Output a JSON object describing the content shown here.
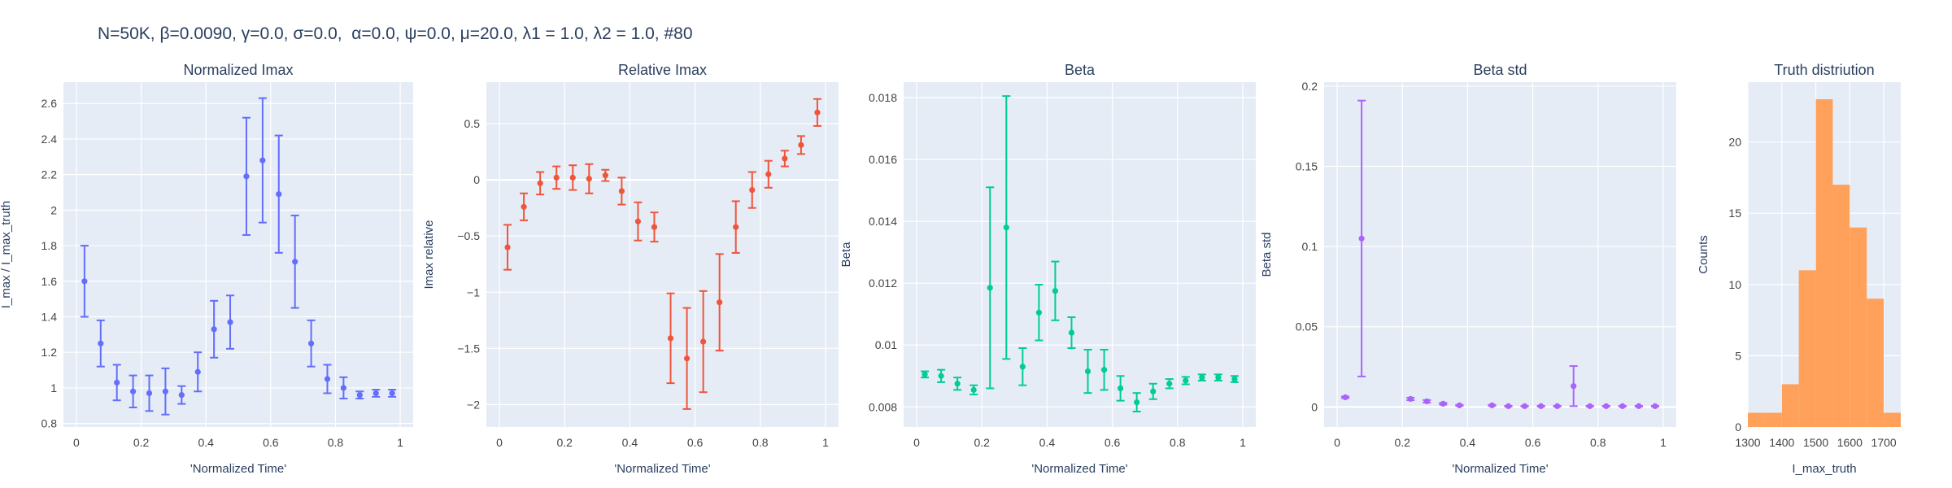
{
  "figure": {
    "suptitle": "N=50K, β=0.0090, γ=0.0, σ=0.0,  α=0.0, ψ=0.0, μ=20.0, λ1 = 1.0, λ2 = 1.0, #80"
  },
  "chart_data": [
    {
      "type": "scatter",
      "title": "Normalized Imax",
      "xlabel": "'Normalized Time'",
      "ylabel": "I_max / I_max_truth",
      "xlim": [
        -0.04,
        1.04
      ],
      "ylim": [
        0.78,
        2.72
      ],
      "xticks": [
        0,
        0.2,
        0.4,
        0.6,
        0.8,
        1
      ],
      "xtick_labels": [
        "0",
        "0.2",
        "0.4",
        "0.6",
        "0.8",
        "1"
      ],
      "yticks": [
        0.8,
        1,
        1.2,
        1.4,
        1.6,
        1.8,
        2,
        2.2,
        2.4,
        2.6
      ],
      "ytick_labels": [
        "0.8",
        "1",
        "1.2",
        "1.4",
        "1.6",
        "1.8",
        "2",
        "2.2",
        "2.4",
        "2.6"
      ],
      "color": "#636efa",
      "grid": true,
      "series": [
        {
          "x": [
            0.025,
            0.075,
            0.125,
            0.175,
            0.225,
            0.275,
            0.325,
            0.375,
            0.425,
            0.475,
            0.525,
            0.575,
            0.625,
            0.675,
            0.725,
            0.775,
            0.825,
            0.875,
            0.925,
            0.975
          ],
          "y": [
            1.6,
            1.25,
            1.03,
            0.98,
            0.97,
            0.98,
            0.96,
            1.09,
            1.33,
            1.37,
            2.19,
            2.28,
            2.09,
            1.71,
            1.25,
            1.05,
            1.0,
            0.96,
            0.97,
            0.97
          ],
          "err": [
            0.2,
            0.13,
            0.1,
            0.09,
            0.1,
            0.13,
            0.05,
            0.11,
            0.16,
            0.15,
            0.33,
            0.35,
            0.33,
            0.26,
            0.13,
            0.08,
            0.06,
            0.02,
            0.02,
            0.02
          ]
        }
      ]
    },
    {
      "type": "scatter",
      "title": "Relative Imax",
      "xlabel": "'Normalized Time'",
      "ylabel": "Imax relative",
      "xlim": [
        -0.04,
        1.04
      ],
      "ylim": [
        -2.2,
        0.87
      ],
      "xticks": [
        0,
        0.2,
        0.4,
        0.6,
        0.8,
        1
      ],
      "xtick_labels": [
        "0",
        "0.2",
        "0.4",
        "0.6",
        "0.8",
        "1"
      ],
      "yticks": [
        -2,
        -1.5,
        -1,
        -0.5,
        0,
        0.5
      ],
      "ytick_labels": [
        "−2",
        "−1.5",
        "−1",
        "−0.5",
        "0",
        "0.5"
      ],
      "color": "#ef553b",
      "grid": true,
      "series": [
        {
          "x": [
            0.025,
            0.075,
            0.125,
            0.175,
            0.225,
            0.275,
            0.325,
            0.375,
            0.425,
            0.475,
            0.525,
            0.575,
            0.625,
            0.675,
            0.725,
            0.775,
            0.825,
            0.875,
            0.925,
            0.975
          ],
          "y": [
            -0.6,
            -0.24,
            -0.03,
            0.02,
            0.02,
            0.01,
            0.04,
            -0.1,
            -0.37,
            -0.42,
            -1.41,
            -1.59,
            -1.44,
            -1.09,
            -0.42,
            -0.09,
            0.05,
            0.19,
            0.31,
            0.6
          ],
          "err": [
            0.2,
            0.12,
            0.1,
            0.1,
            0.11,
            0.13,
            0.05,
            0.12,
            0.17,
            0.13,
            0.4,
            0.45,
            0.45,
            0.43,
            0.23,
            0.16,
            0.12,
            0.07,
            0.08,
            0.12
          ]
        }
      ]
    },
    {
      "type": "scatter",
      "title": "Beta",
      "xlabel": "'Normalized Time'",
      "ylabel": "Beta",
      "xlim": [
        -0.04,
        1.04
      ],
      "ylim": [
        0.00735,
        0.0185
      ],
      "xticks": [
        0,
        0.2,
        0.4,
        0.6,
        0.8,
        1
      ],
      "xtick_labels": [
        "0",
        "0.2",
        "0.4",
        "0.6",
        "0.8",
        "1"
      ],
      "yticks": [
        0.008,
        0.01,
        0.012,
        0.014,
        0.016,
        0.018
      ],
      "ytick_labels": [
        "0.008",
        "0.01",
        "0.012",
        "0.014",
        "0.016",
        "0.018"
      ],
      "color": "#00cc96",
      "grid": true,
      "series": [
        {
          "x": [
            0.025,
            0.075,
            0.125,
            0.175,
            0.225,
            0.275,
            0.325,
            0.375,
            0.425,
            0.475,
            0.525,
            0.575,
            0.625,
            0.675,
            0.725,
            0.775,
            0.825,
            0.875,
            0.925,
            0.975
          ],
          "y": [
            0.00905,
            0.009,
            0.00875,
            0.00855,
            0.01185,
            0.0138,
            0.0093,
            0.01105,
            0.01175,
            0.0104,
            0.00915,
            0.0092,
            0.0086,
            0.00815,
            0.0085,
            0.00875,
            0.00885,
            0.00895,
            0.00895,
            0.0089
          ],
          "err": [
            0.0001,
            0.0002,
            0.0002,
            0.00015,
            0.00325,
            0.00425,
            0.0006,
            0.0009,
            0.00095,
            0.0005,
            0.0007,
            0.00065,
            0.0004,
            0.0003,
            0.00025,
            0.00015,
            0.00012,
            0.0001,
            0.0001,
            0.0001
          ]
        }
      ]
    },
    {
      "type": "scatter",
      "title": "Beta std",
      "xlabel": "'Normalized Time'",
      "ylabel": "Beta std",
      "xlim": [
        -0.04,
        1.04
      ],
      "ylim": [
        -0.0125,
        0.2025
      ],
      "xticks": [
        0,
        0.2,
        0.4,
        0.6,
        0.8,
        1
      ],
      "xtick_labels": [
        "0",
        "0.2",
        "0.4",
        "0.6",
        "0.8",
        "1"
      ],
      "yticks": [
        0,
        0.05,
        0.1,
        0.15,
        0.2
      ],
      "ytick_labels": [
        "0",
        "0.05",
        "0.1",
        "0.15",
        "0.2"
      ],
      "color": "#ab63fa",
      "grid": true,
      "series": [
        {
          "x": [
            0.025,
            0.075,
            0.225,
            0.275,
            0.325,
            0.375,
            0.475,
            0.525,
            0.575,
            0.625,
            0.675,
            0.725,
            0.775,
            0.825,
            0.875,
            0.925,
            0.975
          ],
          "y": [
            0.006,
            0.105,
            0.005,
            0.0035,
            0.002,
            0.001,
            0.001,
            0.0005,
            0.0005,
            0.0005,
            0.0005,
            0.013,
            0.0005,
            0.0005,
            0.0005,
            0.0005,
            0.0005
          ],
          "err": [
            0.0005,
            0.086,
            0.0008,
            0.0008,
            0.0005,
            0.0003,
            0.0003,
            0.0002,
            0.0002,
            0.0002,
            0.0002,
            0.0125,
            0.0002,
            0.0002,
            0.0002,
            0.0002,
            0.0002
          ]
        }
      ]
    },
    {
      "type": "bar",
      "title": "Truth distriution",
      "xlabel": "I_max_truth",
      "ylabel": "Counts",
      "xlim": [
        1300,
        1750
      ],
      "ylim": [
        0,
        24.2
      ],
      "xticks": [
        1300,
        1400,
        1500,
        1600,
        1700
      ],
      "xtick_labels": [
        "1300",
        "1400",
        "1500",
        "1600",
        "1700"
      ],
      "yticks": [
        0,
        5,
        10,
        15,
        20
      ],
      "ytick_labels": [
        "0",
        "5",
        "10",
        "15",
        "20"
      ],
      "color": "#ffa15a",
      "grid": true,
      "bins": [
        {
          "x0": 1300,
          "x1": 1350,
          "count": 1
        },
        {
          "x0": 1350,
          "x1": 1400,
          "count": 1
        },
        {
          "x0": 1400,
          "x1": 1450,
          "count": 3
        },
        {
          "x0": 1450,
          "x1": 1500,
          "count": 11
        },
        {
          "x0": 1500,
          "x1": 1550,
          "count": 23
        },
        {
          "x0": 1550,
          "x1": 1600,
          "count": 17
        },
        {
          "x0": 1600,
          "x1": 1650,
          "count": 14
        },
        {
          "x0": 1650,
          "x1": 1700,
          "count": 9
        },
        {
          "x0": 1700,
          "x1": 1750,
          "count": 1
        }
      ]
    }
  ]
}
